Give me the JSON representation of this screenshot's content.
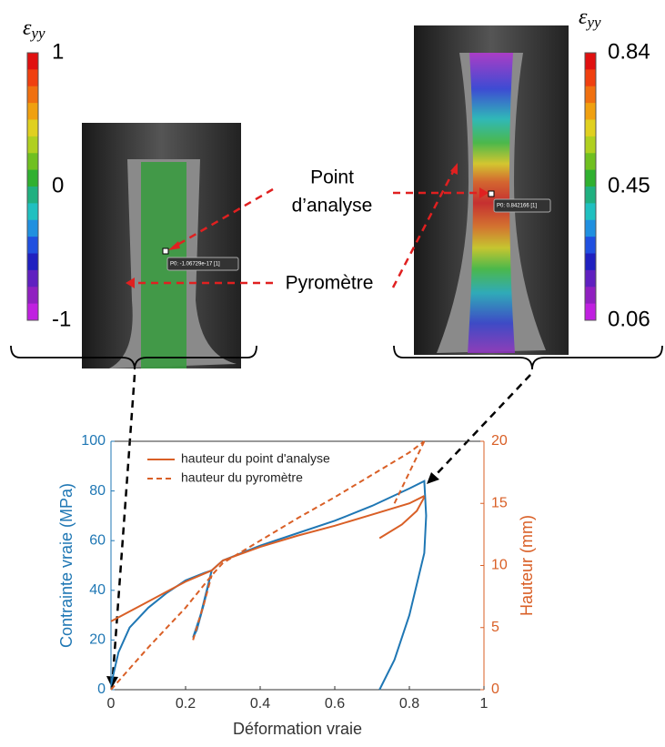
{
  "left_panel": {
    "epsilon": {
      "symbol": "ε",
      "subscript": "yy"
    },
    "colorbar_labels": [
      1,
      0,
      -1
    ],
    "marker_label": "P0: -1.06729e-17 [1]"
  },
  "right_panel": {
    "epsilon": {
      "symbol": "ε",
      "subscript": "yy"
    },
    "colorbar_labels": [
      0.84,
      0.45,
      0.06
    ],
    "marker_label": "P0: 0.842166 [1]"
  },
  "annotations": {
    "point_line1": "Point",
    "point_line2": "d’analyse",
    "pyrometer": "Pyromètre"
  },
  "chart_data": {
    "type": "line",
    "xlabel": "Déformation vraie",
    "ylabel": "Contrainte vraie (MPa)",
    "y2label": "Hauteur (mm)",
    "xlim": [
      0,
      1
    ],
    "xticks": [
      0,
      0.2,
      0.4,
      0.6,
      0.8,
      1
    ],
    "ylim": [
      0,
      100
    ],
    "yticks": [
      0,
      20,
      40,
      60,
      80,
      100
    ],
    "y2lim": [
      0,
      20
    ],
    "y2ticks": [
      0,
      5,
      10,
      15,
      20
    ],
    "legend": "upper left",
    "series": [
      {
        "color": "#1f77b4",
        "axis": "y",
        "linestyle": "solid",
        "x": [
          0,
          0.02,
          0.05,
          0.1,
          0.15,
          0.2,
          0.25,
          0.27,
          0.25,
          0.23,
          0.22,
          0.24,
          0.26,
          0.27,
          0.3,
          0.35,
          0.4,
          0.5,
          0.6,
          0.7,
          0.8,
          0.84,
          0.845,
          0.84,
          0.8,
          0.76,
          0.72
        ],
        "values": [
          2,
          15,
          25,
          33,
          39,
          44,
          47,
          48,
          35,
          24,
          21,
          30,
          42,
          48,
          52,
          55,
          58,
          63,
          68,
          74,
          81,
          84,
          70,
          55,
          30,
          12,
          0
        ]
      },
      {
        "name": "hauteur du point d'analyse",
        "color": "#d95f26",
        "axis": "y2",
        "linestyle": "solid",
        "x": [
          0,
          0.05,
          0.1,
          0.15,
          0.2,
          0.27,
          0.3,
          0.4,
          0.5,
          0.6,
          0.7,
          0.8,
          0.84,
          0.84,
          0.72,
          0.78,
          0.82,
          0.84
        ],
        "values": [
          5.5,
          6.3,
          7.1,
          7.9,
          8.7,
          9.6,
          10.4,
          11.5,
          12.4,
          13.2,
          14.1,
          15,
          15.6,
          null,
          12.2,
          13.3,
          14.4,
          15.5
        ]
      },
      {
        "name": "hauteur du pyromètre",
        "color": "#d95f26",
        "axis": "y2",
        "linestyle": "dashed",
        "x": [
          0,
          0.1,
          0.2,
          0.27,
          0.3,
          0.4,
          0.5,
          0.6,
          0.7,
          0.8,
          0.84,
          0.84,
          0.22,
          0.25,
          0.27,
          0.84,
          0.76,
          0.8,
          0.84
        ],
        "values": [
          0,
          3.4,
          6.6,
          9.2,
          10.2,
          12,
          13.8,
          15.5,
          17.3,
          19.1,
          20,
          null,
          4,
          7,
          9.2,
          null,
          15,
          17.5,
          20
        ]
      }
    ]
  }
}
